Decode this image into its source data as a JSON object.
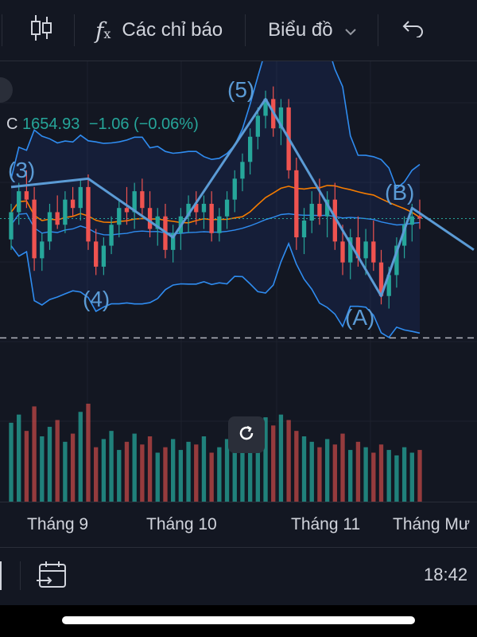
{
  "toolbar": {
    "indicators_label": "Các chỉ báo",
    "chart_type_label": "Biểu đồ",
    "icons": [
      "candles-icon",
      "fx-icon",
      "chevron-down-icon",
      "undo-icon"
    ]
  },
  "legend": {
    "prefix": "C",
    "close": "1654.93",
    "change": "−1.06 (−0.06%)",
    "color": "#26a69a"
  },
  "wave_labels": {
    "w3": "(3)",
    "w4": "(4)",
    "w5": "(5)",
    "wa": "(A)",
    "wb": "(B)"
  },
  "time_axis": [
    "Tháng 9",
    "Tháng 10",
    "Tháng 11",
    "Tháng Mư"
  ],
  "bottom": {
    "time": "18:42"
  },
  "colors": {
    "up": "#26a69a",
    "down": "#ef5350",
    "wave": "#5b9bd5",
    "bollinger": "#2f8cf0",
    "ma_orange": "#f57c00",
    "bg": "#131722"
  },
  "chart_data": {
    "type": "candlestick",
    "x_range": [
      "Tháng 8",
      "Tháng 12"
    ],
    "y_range": [
      1540,
      1730
    ],
    "last_close": 1654.93,
    "candles": [
      [
        1645,
        1662,
        1640,
        1658
      ],
      [
        1658,
        1672,
        1652,
        1668
      ],
      [
        1668,
        1678,
        1660,
        1664
      ],
      [
        1664,
        1670,
        1630,
        1636
      ],
      [
        1636,
        1648,
        1630,
        1644
      ],
      [
        1644,
        1662,
        1640,
        1658
      ],
      [
        1658,
        1666,
        1650,
        1652
      ],
      [
        1652,
        1668,
        1648,
        1664
      ],
      [
        1664,
        1670,
        1656,
        1660
      ],
      [
        1660,
        1674,
        1654,
        1670
      ],
      [
        1670,
        1676,
        1640,
        1644
      ],
      [
        1644,
        1650,
        1628,
        1632
      ],
      [
        1632,
        1646,
        1628,
        1642
      ],
      [
        1642,
        1656,
        1638,
        1652
      ],
      [
        1652,
        1664,
        1646,
        1660
      ],
      [
        1660,
        1670,
        1652,
        1658
      ],
      [
        1658,
        1672,
        1650,
        1668
      ],
      [
        1668,
        1674,
        1656,
        1660
      ],
      [
        1660,
        1668,
        1646,
        1650
      ],
      [
        1650,
        1660,
        1642,
        1656
      ],
      [
        1656,
        1662,
        1636,
        1640
      ],
      [
        1640,
        1652,
        1634,
        1648
      ],
      [
        1648,
        1660,
        1640,
        1656
      ],
      [
        1656,
        1666,
        1648,
        1662
      ],
      [
        1662,
        1668,
        1652,
        1658
      ],
      [
        1658,
        1666,
        1650,
        1662
      ],
      [
        1662,
        1668,
        1644,
        1648
      ],
      [
        1648,
        1660,
        1644,
        1656
      ],
      [
        1656,
        1668,
        1650,
        1664
      ],
      [
        1664,
        1678,
        1658,
        1674
      ],
      [
        1674,
        1686,
        1668,
        1682
      ],
      [
        1682,
        1698,
        1676,
        1694
      ],
      [
        1694,
        1708,
        1688,
        1704
      ],
      [
        1704,
        1716,
        1698,
        1712
      ],
      [
        1712,
        1718,
        1694,
        1698
      ],
      [
        1698,
        1712,
        1690,
        1708
      ],
      [
        1708,
        1712,
        1674,
        1678
      ],
      [
        1678,
        1684,
        1640,
        1646
      ],
      [
        1646,
        1660,
        1638,
        1654
      ],
      [
        1654,
        1668,
        1648,
        1662
      ],
      [
        1662,
        1674,
        1652,
        1656
      ],
      [
        1656,
        1668,
        1646,
        1664
      ],
      [
        1664,
        1672,
        1640,
        1644
      ],
      [
        1644,
        1652,
        1628,
        1634
      ],
      [
        1634,
        1650,
        1626,
        1646
      ],
      [
        1646,
        1656,
        1632,
        1636
      ],
      [
        1636,
        1650,
        1628,
        1644
      ],
      [
        1644,
        1654,
        1630,
        1634
      ],
      [
        1634,
        1640,
        1614,
        1618
      ],
      [
        1618,
        1632,
        1612,
        1628
      ],
      [
        1628,
        1646,
        1622,
        1642
      ],
      [
        1642,
        1656,
        1636,
        1652
      ],
      [
        1652,
        1662,
        1644,
        1656
      ],
      [
        1656,
        1664,
        1650,
        1655
      ]
    ],
    "volumes": [
      58,
      64,
      52,
      70,
      48,
      55,
      60,
      44,
      50,
      66,
      72,
      40,
      46,
      52,
      38,
      44,
      50,
      42,
      48,
      36,
      40,
      46,
      38,
      44,
      42,
      48,
      36,
      40,
      46,
      50,
      54,
      60,
      58,
      62,
      56,
      64,
      60,
      52,
      48,
      44,
      40,
      46,
      42,
      50,
      38,
      44,
      40,
      36,
      42,
      38,
      34,
      40,
      36,
      38
    ]
  }
}
